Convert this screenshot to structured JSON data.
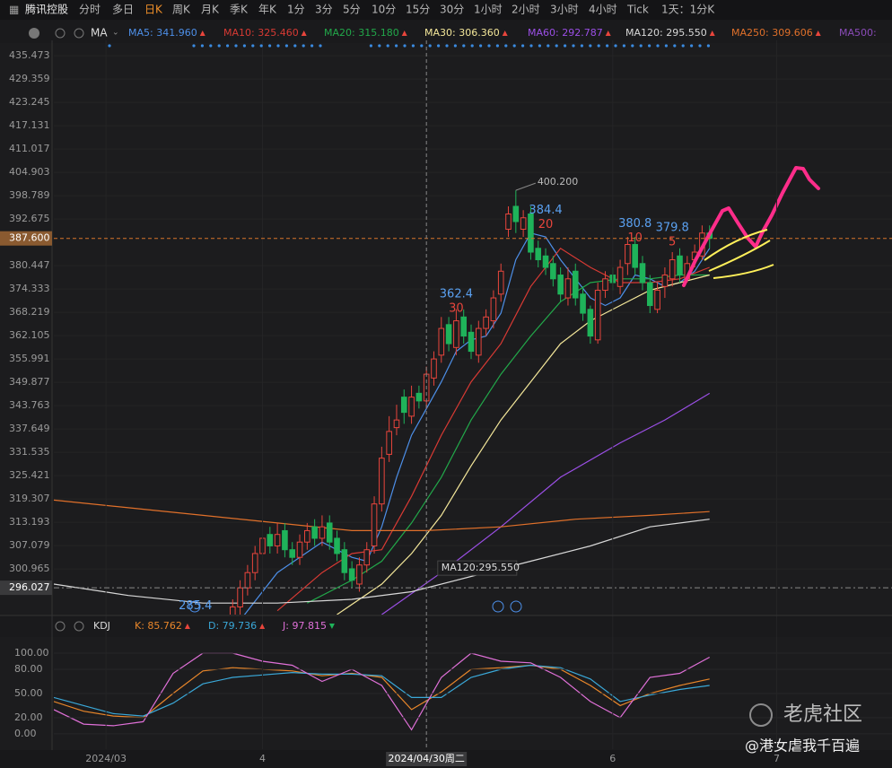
{
  "toolbar": {
    "stock": "腾讯控股",
    "periods": [
      "分时",
      "多日",
      "日K",
      "周K",
      "月K",
      "季K",
      "年K",
      "1分",
      "3分",
      "5分",
      "10分",
      "15分",
      "30分",
      "1小时",
      "2小时",
      "3小时",
      "4小时",
      "Tick",
      "1天：1分K"
    ],
    "selected": 2
  },
  "chart_data": {
    "type": "candlestick",
    "indicator": "MA",
    "xlim": [
      0,
      112
    ],
    "ylim": [
      289,
      439.5
    ],
    "yticks": [
      435.473,
      429.359,
      423.245,
      417.131,
      411.017,
      404.903,
      398.789,
      392.675,
      380.447,
      374.333,
      368.219,
      362.105,
      355.991,
      349.877,
      343.763,
      337.649,
      331.535,
      325.421,
      319.307,
      313.193,
      307.079,
      300.965
    ],
    "xticks": [
      {
        "value": 7,
        "label": "2024/03"
      },
      {
        "value": 28,
        "label": "4"
      },
      {
        "value": 75,
        "label": "6"
      },
      {
        "value": 97,
        "label": "7"
      }
    ],
    "up_color": "#e8453c",
    "down_color": "#1fb35a",
    "candles": {
      "x": [
        24,
        25,
        26,
        27,
        28,
        29,
        30,
        31,
        32,
        33,
        34,
        35,
        36,
        37,
        38,
        39,
        40,
        41,
        42,
        43,
        44,
        45,
        46,
        47,
        48,
        49,
        50,
        51,
        52,
        53,
        54,
        55,
        56,
        57,
        58,
        59,
        60,
        61,
        62,
        63,
        64,
        65,
        66,
        67,
        68,
        69,
        70,
        71,
        72,
        73,
        74,
        75,
        76,
        77,
        78,
        79,
        80,
        81,
        82,
        83,
        84,
        85,
        86,
        87,
        88
      ],
      "open": [
        286,
        291,
        296,
        300,
        305,
        310,
        307,
        311,
        306,
        304,
        308,
        312,
        309,
        313,
        309,
        306,
        301,
        297,
        302,
        307,
        318,
        331,
        338,
        346,
        341,
        347,
        345,
        351,
        357,
        365,
        359,
        367,
        363,
        357,
        364,
        366,
        373,
        390,
        396,
        390,
        394,
        385,
        383,
        381,
        378,
        372,
        379,
        373,
        369,
        361,
        374,
        378,
        375,
        381,
        386,
        381,
        376,
        369,
        375,
        377,
        383,
        377,
        382,
        383,
        389
      ],
      "high": [
        293,
        298,
        302,
        307,
        311,
        312,
        313,
        313,
        308,
        310,
        313,
        314,
        315,
        315,
        311,
        308,
        303,
        304,
        308,
        320,
        333,
        341,
        344,
        348,
        349,
        349,
        354,
        358,
        367,
        367,
        369,
        369,
        365,
        366,
        369,
        374,
        381,
        396,
        400.2,
        395,
        396,
        387,
        385,
        383,
        380,
        380,
        381,
        375,
        370,
        376,
        379,
        380,
        382,
        388,
        388,
        383,
        378,
        376,
        380,
        384,
        385,
        383,
        386,
        391,
        391
      ],
      "low": [
        285.4,
        289,
        294,
        298,
        303,
        305,
        305,
        304,
        302,
        302,
        306,
        307,
        307,
        306,
        303,
        298,
        296,
        295,
        300,
        305,
        316,
        329,
        336,
        339,
        339,
        343,
        343,
        349,
        355,
        358,
        357,
        360,
        356,
        355,
        362,
        364,
        371,
        388,
        389,
        388,
        382,
        380,
        378,
        375,
        371,
        370,
        370,
        366,
        360,
        360,
        372,
        374,
        373,
        378,
        378,
        374,
        368,
        368,
        372,
        375,
        376,
        376,
        380,
        382,
        385
      ],
      "close": [
        291,
        296,
        300,
        305,
        309,
        307,
        310,
        306,
        304,
        308,
        311,
        309,
        312,
        308,
        305,
        300,
        298,
        302,
        306,
        318,
        330,
        337,
        340,
        342,
        346,
        345,
        352,
        356,
        364,
        360,
        366,
        362,
        358,
        364,
        367,
        372,
        379,
        394,
        392,
        393,
        384,
        382,
        380,
        377,
        373,
        377,
        372,
        368,
        362,
        374,
        377,
        376,
        380,
        386,
        380,
        376,
        370,
        374,
        378,
        382,
        378,
        381,
        384,
        389,
        387.6
      ]
    },
    "series": [
      {
        "legend": "MA5: 341.960",
        "color": "#4d8fe8",
        "trend": "up",
        "x": [
          24,
          30,
          36,
          40,
          42,
          44,
          46,
          48,
          50,
          52,
          54,
          56,
          58,
          60,
          62,
          64,
          66,
          68,
          70,
          72,
          74,
          76,
          78,
          80,
          82,
          84,
          86,
          88
        ],
        "values": [
          285,
          300,
          308,
          304,
          303,
          312,
          325,
          336,
          343,
          350,
          358,
          361,
          362,
          368,
          382,
          389,
          388,
          382,
          377,
          372,
          370,
          372,
          378,
          377,
          375,
          376,
          379,
          385
        ]
      },
      {
        "legend": "MA10: 325.460",
        "color": "#d83a34",
        "trend": "up",
        "x": [
          30,
          36,
          40,
          44,
          48,
          52,
          56,
          60,
          64,
          68,
          72,
          76,
          80,
          84,
          88
        ],
        "values": [
          290,
          300,
          305,
          306,
          320,
          336,
          350,
          360,
          375,
          385,
          380,
          376,
          376,
          377,
          380
        ]
      },
      {
        "legend": "MA20: 315.180",
        "color": "#22a84a",
        "trend": "up",
        "x": [
          34,
          40,
          44,
          48,
          52,
          56,
          60,
          64,
          68,
          72,
          76,
          80,
          84,
          88
        ],
        "values": [
          292,
          298,
          303,
          313,
          325,
          340,
          352,
          362,
          371,
          376,
          377,
          377,
          378,
          378
        ]
      },
      {
        "legend": "MA30: 306.360",
        "color": "#f4e79a",
        "trend": "up",
        "x": [
          38,
          44,
          48,
          52,
          56,
          60,
          64,
          68,
          72,
          76,
          80,
          84,
          88
        ],
        "values": [
          289,
          297,
          305,
          315,
          328,
          340,
          350,
          360,
          366,
          370,
          374,
          376,
          378
        ]
      },
      {
        "legend": "MA60: 292.787",
        "color": "#9b4fe6",
        "trend": "up",
        "x": [
          44,
          52,
          60,
          68,
          76,
          82,
          88
        ],
        "values": [
          289,
          300,
          312,
          325,
          334,
          340,
          347
        ]
      },
      {
        "legend": "MA120: 295.550",
        "color": "#d8d8d8",
        "trend": "up",
        "x": [
          0,
          10,
          20,
          30,
          40,
          48,
          56,
          64,
          72,
          80,
          88
        ],
        "values": [
          297,
          294,
          292,
          292,
          293,
          295,
          299,
          303,
          307,
          312,
          314
        ]
      },
      {
        "legend": "MA250: 309.606",
        "color": "#e0702a",
        "trend": "up",
        "x": [
          0,
          10,
          20,
          30,
          40,
          50,
          60,
          70,
          80,
          88
        ],
        "values": [
          319,
          317,
          315,
          313,
          311,
          311,
          312,
          314,
          315,
          316
        ]
      },
      {
        "legend": "MA500:",
        "color": "#8a4bb8"
      }
    ],
    "annotations": [
      {
        "value": 285.4,
        "label": "285.4",
        "x": 19
      },
      {
        "value": 362.4,
        "label": "362.4",
        "x": 54,
        "count": "30"
      },
      {
        "value": 384.4,
        "label": "384.4",
        "x": 66,
        "count": "20"
      },
      {
        "value": 380.8,
        "label": "380.8",
        "x": 78,
        "count": "10"
      },
      {
        "value": 379.8,
        "label": "379.8",
        "x": 83,
        "count": "5"
      }
    ],
    "max_label": {
      "value": 400.2,
      "label": "400.200",
      "x": 62
    },
    "last_price": {
      "value": 387.6,
      "label": "387.600"
    },
    "crosshair": {
      "x": 50,
      "label": "2024/04/30周二",
      "price": {
        "value": 296.027,
        "label": "296.027"
      }
    },
    "ma120_callout": {
      "label": "MA120:295.550",
      "x": 52,
      "value": 295.55
    },
    "kdj": {
      "name": "KDJ",
      "ylim": [
        -19,
        120
      ],
      "yticks": [
        {
          "value": 100,
          "label": "100.00"
        },
        {
          "value": 80,
          "label": "80.00"
        },
        {
          "value": 50,
          "label": "50.00"
        },
        {
          "value": 20,
          "label": "20.00"
        },
        {
          "value": 0,
          "label": "0.00"
        }
      ],
      "series": [
        {
          "legend": "K: 85.762",
          "color": "#e8862a",
          "trend": "up",
          "x": [
            0,
            4,
            8,
            12,
            16,
            20,
            24,
            28,
            32,
            36,
            40,
            44,
            48,
            52,
            56,
            60,
            64,
            68,
            72,
            76,
            80,
            84,
            88
          ],
          "values": [
            40,
            28,
            22,
            20,
            50,
            78,
            82,
            80,
            78,
            72,
            75,
            70,
            30,
            52,
            80,
            82,
            85,
            80,
            60,
            35,
            50,
            60,
            68
          ]
        },
        {
          "legend": "D: 79.736",
          "color": "#3aa8d8",
          "trend": "up",
          "x": [
            0,
            4,
            8,
            12,
            16,
            20,
            24,
            28,
            32,
            36,
            40,
            44,
            48,
            52,
            56,
            60,
            64,
            68,
            72,
            76,
            80,
            84,
            88
          ],
          "values": [
            45,
            35,
            25,
            22,
            38,
            62,
            70,
            73,
            76,
            74,
            74,
            72,
            45,
            45,
            70,
            80,
            85,
            82,
            68,
            40,
            48,
            55,
            60
          ]
        },
        {
          "legend": "J: 97.815",
          "color": "#e070d8",
          "trend": "down",
          "x": [
            0,
            4,
            8,
            12,
            16,
            20,
            24,
            28,
            32,
            36,
            40,
            44,
            48,
            52,
            56,
            60,
            64,
            68,
            72,
            76,
            80,
            84,
            88
          ],
          "values": [
            30,
            12,
            10,
            15,
            75,
            100,
            100,
            90,
            85,
            65,
            80,
            60,
            5,
            70,
            100,
            90,
            88,
            70,
            40,
            20,
            70,
            75,
            95
          ]
        }
      ]
    }
  },
  "watermark": {
    "brand": "老虎社区",
    "user": "@港女虐我千百遍"
  }
}
